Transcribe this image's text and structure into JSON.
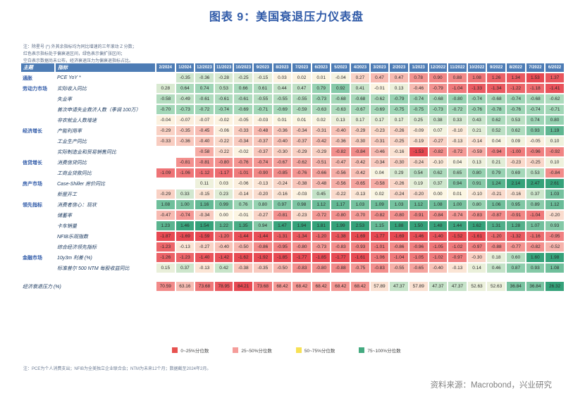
{
  "title": "图表 9：美国衰退压力仪表盘",
  "note_top": "注：除星号 (*) 外其余指标均为同比增速的三年滚动 Z 分数；\n红色表示指标处于偏衰退区间，绿色表示偏扩张区间；\n空白表示数据尚未公布，经济衰退压力为偏衰退指标占比。",
  "footnote": "注：PCE为个人消费支出；NFIB为全美独立企业联合会；NTM为未来12个月；数据截至2024年2月。",
  "source": "资料来源：Macrobond，兴业研究",
  "colors": {
    "title_blue": "#2f5aa8",
    "header_blue": "#4d7cb5",
    "deep_red": "#e74952",
    "salmon": "#f49693",
    "pale_yellow": "#fcf6e3",
    "light_green": "#9dd5b5",
    "deep_green": "#35a27a"
  },
  "legend": [
    {
      "label": "0~25%分位数",
      "color": "#e7514f"
    },
    {
      "label": "25~50%分位数",
      "color": "#f59d9a"
    },
    {
      "label": "50~75%分位数",
      "color": "#f7e154"
    },
    {
      "label": "75~100%分位数",
      "color": "#44aa80"
    }
  ],
  "chart_data": {
    "type": "heatmap",
    "title": "美国衰退压力仪表盘",
    "col_header_theme": "主题",
    "col_header_indicator": "指标",
    "columns": [
      "2/2024",
      "1/2024",
      "12/2023",
      "11/2023",
      "10/2023",
      "9/2023",
      "8/2023",
      "7/2023",
      "6/2023",
      "5/2023",
      "4/2023",
      "3/2023",
      "2/2023",
      "1/2023",
      "12/2022",
      "11/2022",
      "10/2022",
      "9/2022",
      "8/2022",
      "7/2022",
      "6/2022"
    ],
    "groups": [
      {
        "theme": "通胀",
        "rows": [
          {
            "indicator": "PCE YoY *",
            "bad_when_high": true,
            "values": [
              null,
              -0.35,
              -0.36,
              -0.28,
              -0.25,
              -0.15,
              0.03,
              0.02,
              0.01,
              -0.04,
              0.27,
              0.47,
              0.47,
              0.78,
              0.9,
              0.88,
              1.08,
              1.26,
              1.34,
              1.53,
              1.37
            ]
          }
        ]
      },
      {
        "theme": "劳动力市场",
        "rows": [
          {
            "indicator": "实际收入同比",
            "bad_when_high": false,
            "values": [
              0.28,
              0.64,
              0.74,
              0.53,
              0.66,
              0.61,
              0.44,
              0.47,
              0.79,
              0.92,
              0.41,
              -0.01,
              0.13,
              -0.46,
              -0.79,
              -1.04,
              -1.33,
              -1.34,
              -1.22,
              -1.18,
              -1.41
            ]
          },
          {
            "indicator": "失业率",
            "bad_when_high": true,
            "values": [
              -0.58,
              -0.49,
              -0.61,
              -0.61,
              -0.61,
              -0.55,
              -0.55,
              -0.55,
              -0.73,
              -0.68,
              -0.68,
              -0.62,
              -0.79,
              -0.74,
              -0.68,
              -0.8,
              -0.74,
              -0.68,
              -0.74,
              -0.68,
              -0.62
            ]
          },
          {
            "indicator": "首次申请失业救济人数（季调 100万）",
            "bad_when_high": true,
            "values": [
              -0.7,
              -0.73,
              -0.72,
              -0.74,
              -0.69,
              -0.71,
              -0.69,
              -0.59,
              -0.63,
              -0.63,
              -0.67,
              -0.69,
              -0.75,
              -0.75,
              -0.73,
              -0.72,
              -0.76,
              -0.78,
              -0.76,
              -0.74,
              -0.71
            ]
          },
          {
            "indicator": "非农就业人数增速",
            "bad_when_high": false,
            "values": [
              -0.04,
              -0.07,
              -0.07,
              -0.02,
              -0.05,
              -0.03,
              0.01,
              0.01,
              0.02,
              0.13,
              0.17,
              0.17,
              0.17,
              0.25,
              0.38,
              0.33,
              0.43,
              0.62,
              0.53,
              0.74,
              0.8
            ]
          }
        ]
      },
      {
        "theme": "经济增长",
        "rows": [
          {
            "indicator": "产能利用率",
            "bad_when_high": false,
            "values": [
              -0.29,
              -0.35,
              -0.45,
              -0.06,
              -0.33,
              -0.48,
              -0.36,
              -0.34,
              -0.31,
              -0.4,
              -0.29,
              -0.23,
              -0.26,
              -0.09,
              0.07,
              -0.1,
              0.21,
              0.52,
              0.62,
              0.93,
              1.19
            ]
          },
          {
            "indicator": "工业生产同比",
            "bad_when_high": false,
            "values": [
              -0.33,
              -0.36,
              -0.4,
              -0.22,
              -0.34,
              -0.37,
              -0.4,
              -0.37,
              -0.42,
              -0.36,
              -0.3,
              -0.31,
              -0.25,
              -0.19,
              -0.27,
              -0.13,
              -0.14,
              0.04,
              0.09,
              -0.05,
              0.1
            ]
          },
          {
            "indicator": "实际制造业和贸易销售同比",
            "bad_when_high": false,
            "values": [
              null,
              null,
              -0.58,
              -0.22,
              -0.02,
              -0.37,
              -0.3,
              -0.29,
              -0.29,
              -0.82,
              -0.84,
              -0.46,
              -0.16,
              -1.53,
              -0.82,
              -0.72,
              -0.59,
              -0.94,
              -1.0,
              -0.96,
              -0.92
            ]
          }
        ]
      },
      {
        "theme": "信贷增长",
        "rows": [
          {
            "indicator": "消费信贷同比",
            "bad_when_high": false,
            "values": [
              null,
              -0.81,
              -0.81,
              -0.8,
              -0.76,
              -0.74,
              -0.67,
              -0.62,
              -0.51,
              -0.47,
              -0.42,
              -0.34,
              -0.3,
              -0.24,
              -0.1,
              0.04,
              0.13,
              0.21,
              -0.23,
              -0.25,
              0.1
            ]
          },
          {
            "indicator": "工商业贷款同比",
            "bad_when_high": false,
            "values": [
              -1.09,
              -1.06,
              -1.12,
              -1.17,
              -1.01,
              -0.9,
              -0.85,
              -0.76,
              -0.66,
              -0.56,
              -0.42,
              0.04,
              0.29,
              0.54,
              0.62,
              0.65,
              0.8,
              0.79,
              0.69,
              0.53,
              -0.84
            ]
          }
        ]
      },
      {
        "theme": "房产市场",
        "rows": [
          {
            "indicator": "Case-Shiller 房价同比",
            "bad_when_high": false,
            "values": [
              null,
              null,
              0.11,
              0.03,
              -0.06,
              -0.13,
              -0.24,
              -0.38,
              -0.48,
              -0.56,
              -0.65,
              -0.58,
              -0.26,
              0.19,
              0.37,
              0.94,
              0.91,
              1.24,
              2.14,
              2.47,
              2.61
            ]
          },
          {
            "indicator": "新屋开工",
            "bad_when_high": false,
            "values": [
              -0.29,
              0.33,
              -0.15,
              0.23,
              -0.14,
              -0.2,
              -0.16,
              -0.03,
              0.45,
              -0.22,
              -0.13,
              0.02,
              -0.24,
              -0.2,
              0.0,
              0.01,
              -0.1,
              -0.21,
              -0.16,
              0.37,
              1.03
            ]
          }
        ]
      },
      {
        "theme": "领先指标",
        "rows": [
          {
            "indicator": "消费者信心：现状",
            "bad_when_high": false,
            "values": [
              1.08,
              1.0,
              1.16,
              0.99,
              0.76,
              0.8,
              0.97,
              0.98,
              1.12,
              1.17,
              1.03,
              1.09,
              1.03,
              1.12,
              1.08,
              1.0,
              0.8,
              1.06,
              0.95,
              0.89,
              1.12
            ]
          },
          {
            "indicator": "储蓄率",
            "bad_when_high": false,
            "values": [
              -0.47,
              -0.74,
              -0.34,
              0.0,
              -0.01,
              -0.27,
              -0.81,
              -0.23,
              -0.72,
              -0.8,
              -0.7,
              -0.82,
              -0.8,
              -0.91,
              -0.84,
              -0.74,
              -0.83,
              -0.87,
              -0.91,
              -1.04,
              -0.2
            ]
          },
          {
            "indicator": "卡车销量",
            "bad_when_high": false,
            "values": [
              1.23,
              1.46,
              1.54,
              1.22,
              1.35,
              0.94,
              1.47,
              1.94,
              1.81,
              1.99,
              2.53,
              1.15,
              1.88,
              1.5,
              1.48,
              1.44,
              1.62,
              1.31,
              1.28,
              1.07,
              0.93
            ]
          },
          {
            "indicator": "NFIB乐观指数",
            "bad_when_high": false,
            "values": [
              -1.87,
              -1.69,
              -1.59,
              -1.2,
              -1.44,
              -1.44,
              -1.31,
              -1.34,
              -1.2,
              -1.38,
              -1.69,
              -1.77,
              -1.69,
              -1.46,
              -1.4,
              -1.52,
              -1.61,
              -1.2,
              -1.32,
              -1.16,
              -0.95
            ]
          },
          {
            "indicator": "综合经济领先指标",
            "bad_when_high": false,
            "values": [
              -1.23,
              -0.13,
              -0.27,
              -0.4,
              -0.5,
              -0.86,
              -0.95,
              -0.8,
              -0.73,
              -0.83,
              -0.93,
              -1.01,
              -0.86,
              -0.96,
              -1.05,
              -1.02,
              -0.97,
              -0.88,
              -0.77,
              -0.82,
              -0.52
            ]
          }
        ]
      },
      {
        "theme": "金融市场",
        "rows": [
          {
            "indicator": "10y3m 利差 (%)",
            "bad_when_high": false,
            "values": [
              -1.26,
              -1.23,
              -1.4,
              -1.42,
              -1.62,
              -1.92,
              -1.85,
              -1.77,
              -1.85,
              -1.77,
              -1.61,
              -1.06,
              -1.04,
              -1.05,
              -1.02,
              -0.97,
              -0.3,
              0.18,
              0.6,
              1.6,
              1.98
            ]
          },
          {
            "indicator": "标准普尔 500 NTM 每股收益同比",
            "bad_when_high": false,
            "values": [
              0.15,
              0.37,
              -0.13,
              0.42,
              -0.38,
              -0.35,
              -0.5,
              -0.83,
              -0.8,
              -0.88,
              -0.75,
              -0.83,
              -0.55,
              -0.65,
              -0.4,
              -0.13,
              0.14,
              0.46,
              0.87,
              0.93,
              1.08
            ]
          }
        ]
      }
    ],
    "summary_row": {
      "indicator": "经济衰退压力 (%)",
      "values": [
        70.59,
        63.16,
        73.68,
        78.95,
        84.21,
        73.68,
        68.42,
        68.42,
        68.42,
        68.42,
        68.42,
        57.89,
        47.37,
        57.89,
        47.37,
        47.37,
        52.63,
        52.63,
        36.84,
        36.84,
        26.32
      ]
    }
  }
}
